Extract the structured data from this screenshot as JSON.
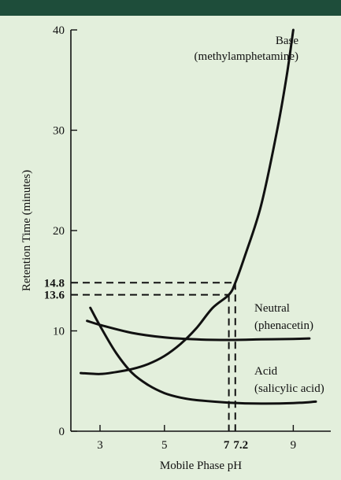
{
  "colors": {
    "header_bar": "#1e4d3a",
    "panel_background": "#e3efdc",
    "ink": "#111111"
  },
  "chart_data": {
    "type": "line",
    "title": "",
    "xlabel": "Mobile Phase pH",
    "ylabel": "Retention Time (minutes)",
    "xlim": [
      2.2,
      9.8
    ],
    "ylim": [
      0,
      40
    ],
    "x_ticks": [
      {
        "value": 3,
        "label": "3",
        "bold": false
      },
      {
        "value": 5,
        "label": "5",
        "bold": false
      },
      {
        "value": 7,
        "label": "7",
        "bold": true
      },
      {
        "value": 7.2,
        "label": "7.2",
        "bold": true
      },
      {
        "value": 9,
        "label": "9",
        "bold": false
      }
    ],
    "y_ticks": [
      {
        "value": 0,
        "label": "0",
        "bold": false
      },
      {
        "value": 10,
        "label": "10",
        "bold": false
      },
      {
        "value": 13.6,
        "label": "13.6",
        "bold": true
      },
      {
        "value": 14.8,
        "label": "14.8",
        "bold": true
      },
      {
        "value": 20,
        "label": "20",
        "bold": false
      },
      {
        "value": 30,
        "label": "30",
        "bold": false
      },
      {
        "value": 40,
        "label": "40",
        "bold": false
      }
    ],
    "series": [
      {
        "name": "Base (methylamphetamine)",
        "annotation_lines": [
          "Base",
          "(methylamphetamine)"
        ],
        "points": [
          [
            2.4,
            5.8
          ],
          [
            3,
            5.7
          ],
          [
            3.5,
            5.9
          ],
          [
            4,
            6.2
          ],
          [
            4.5,
            6.7
          ],
          [
            5,
            7.5
          ],
          [
            5.5,
            8.7
          ],
          [
            6,
            10.3
          ],
          [
            6.5,
            12.3
          ],
          [
            7,
            13.6
          ],
          [
            7.2,
            14.8
          ],
          [
            7.5,
            17.5
          ],
          [
            8,
            22.5
          ],
          [
            8.5,
            30
          ],
          [
            8.8,
            35.5
          ],
          [
            9.0,
            40
          ]
        ]
      },
      {
        "name": "Neutral (phenacetin)",
        "annotation_lines": [
          "Neutral",
          "(phenacetin)"
        ],
        "points": [
          [
            2.6,
            11
          ],
          [
            3,
            10.6
          ],
          [
            4,
            9.8
          ],
          [
            5,
            9.35
          ],
          [
            6,
            9.15
          ],
          [
            7,
            9.1
          ],
          [
            8,
            9.15
          ],
          [
            9,
            9.2
          ],
          [
            9.5,
            9.25
          ]
        ]
      },
      {
        "name": "Acid (salicylic acid)",
        "annotation_lines": [
          "Acid",
          "(salicylic acid)"
        ],
        "points": [
          [
            2.7,
            12.3
          ],
          [
            3,
            10.5
          ],
          [
            3.5,
            7.8
          ],
          [
            4,
            5.8
          ],
          [
            4.5,
            4.6
          ],
          [
            5,
            3.8
          ],
          [
            5.5,
            3.35
          ],
          [
            6,
            3.1
          ],
          [
            7,
            2.85
          ],
          [
            8,
            2.75
          ],
          [
            9,
            2.8
          ],
          [
            9.7,
            2.95
          ]
        ]
      }
    ],
    "reference_lines": [
      {
        "x": 7,
        "y": 13.6
      },
      {
        "x": 7.2,
        "y": 14.8
      }
    ],
    "grid": false,
    "legend": "none"
  }
}
